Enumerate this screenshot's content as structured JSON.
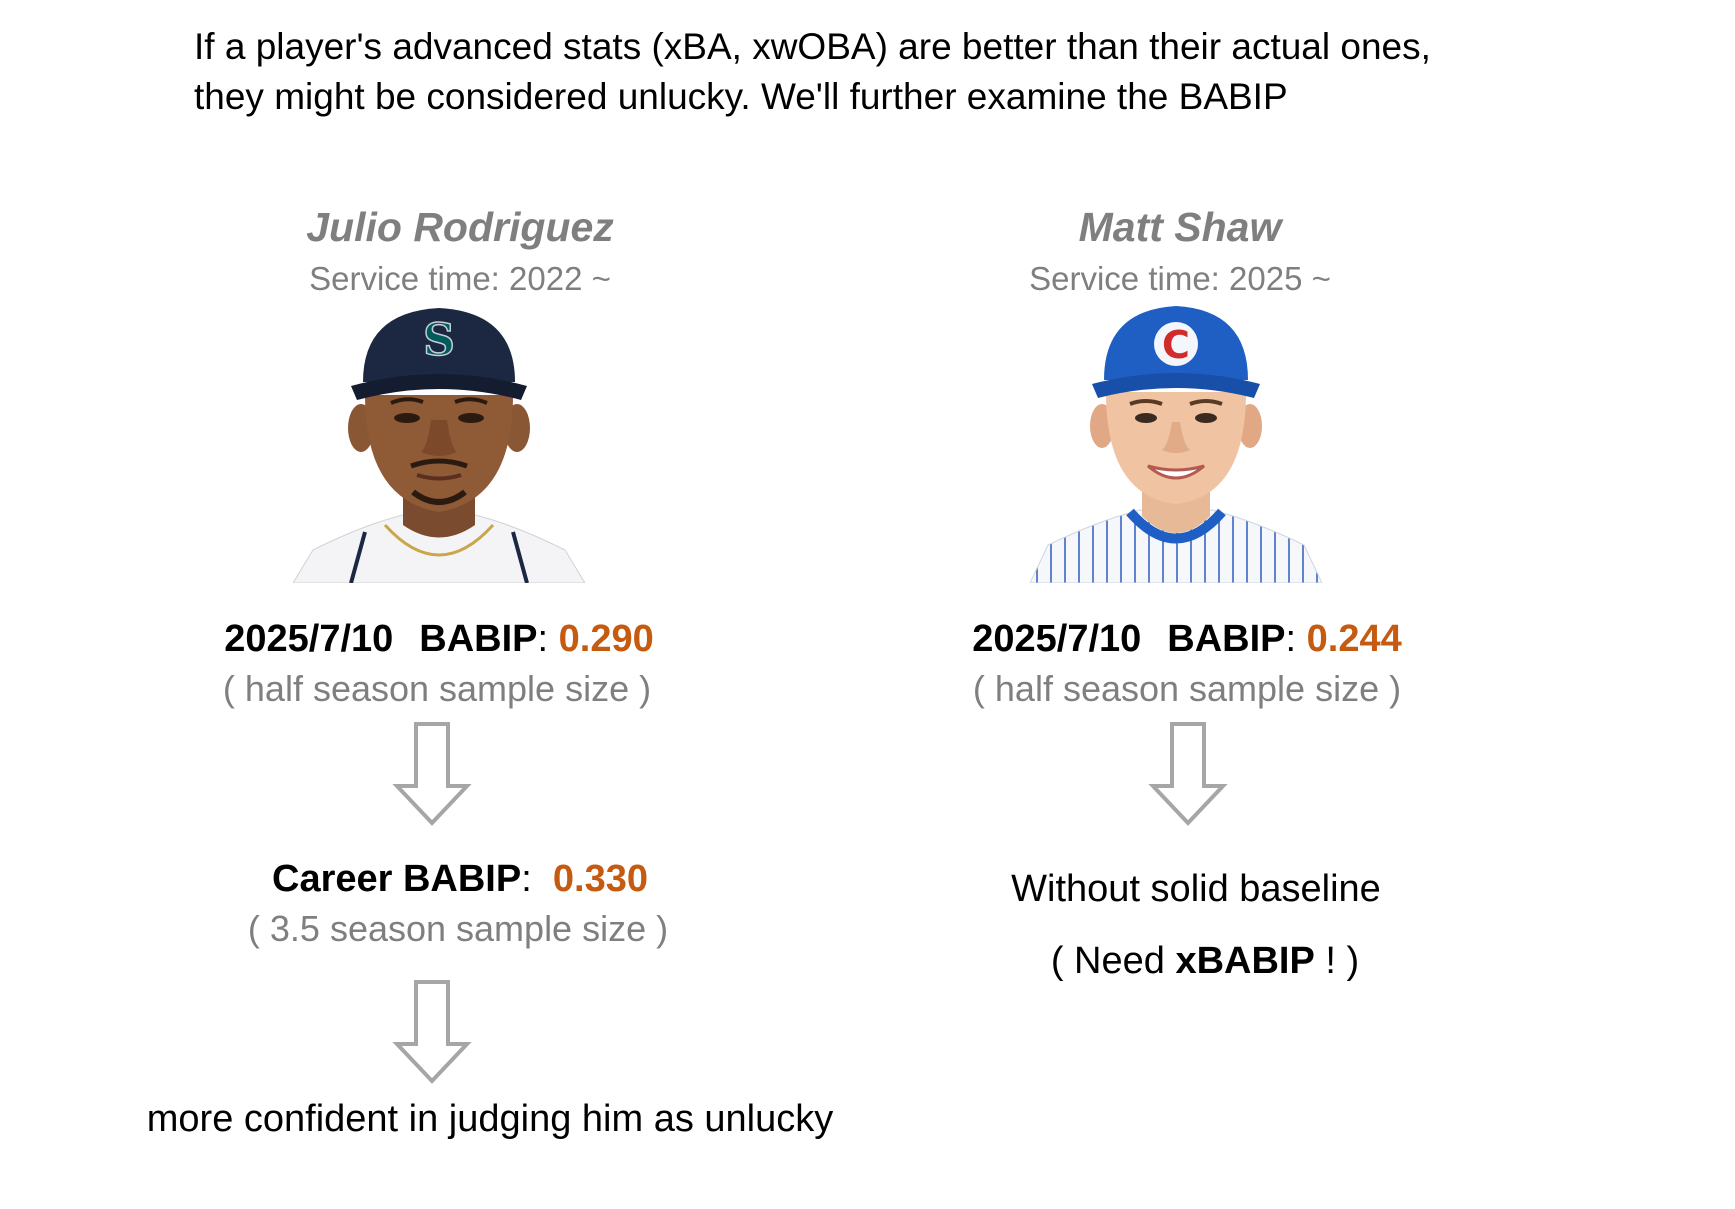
{
  "intro": {
    "line1": "If a player's advanced stats (xBA, xwOBA) are better than their actual ones,",
    "line2": "they might be considered unlucky. We'll further examine the BABIP"
  },
  "left": {
    "name": "Julio Rodriguez",
    "service": "Service time: 2022 ~",
    "date": "2025/7/10",
    "babip_label": "BABIP",
    "babip_value": "0.290",
    "sample": "( half season sample size )",
    "career_label": "Career BABIP",
    "career_value": "0.330",
    "career_sample": "( 3.5 season sample size )",
    "conclusion": "more confident in judging him as unlucky",
    "cap_color": "#1c2841",
    "logo_color": "#005c5c"
  },
  "right": {
    "name": "Matt Shaw",
    "service": "Service time: 2025 ~",
    "date": "2025/7/10",
    "babip_label": "BABIP",
    "babip_value": "0.244",
    "sample": "( half season sample size )",
    "conclusion_line1": "Without solid baseline",
    "need_prefix": "( Need ",
    "need_bold": "xBABIP",
    "need_suffix": " ! )",
    "cap_color": "#1f5fc4",
    "logo_color": "#d12b2b"
  },
  "colors": {
    "value_orange": "#c55a11",
    "gray_text": "#7f7f7f",
    "arrow_gray": "#a6a6a6"
  }
}
